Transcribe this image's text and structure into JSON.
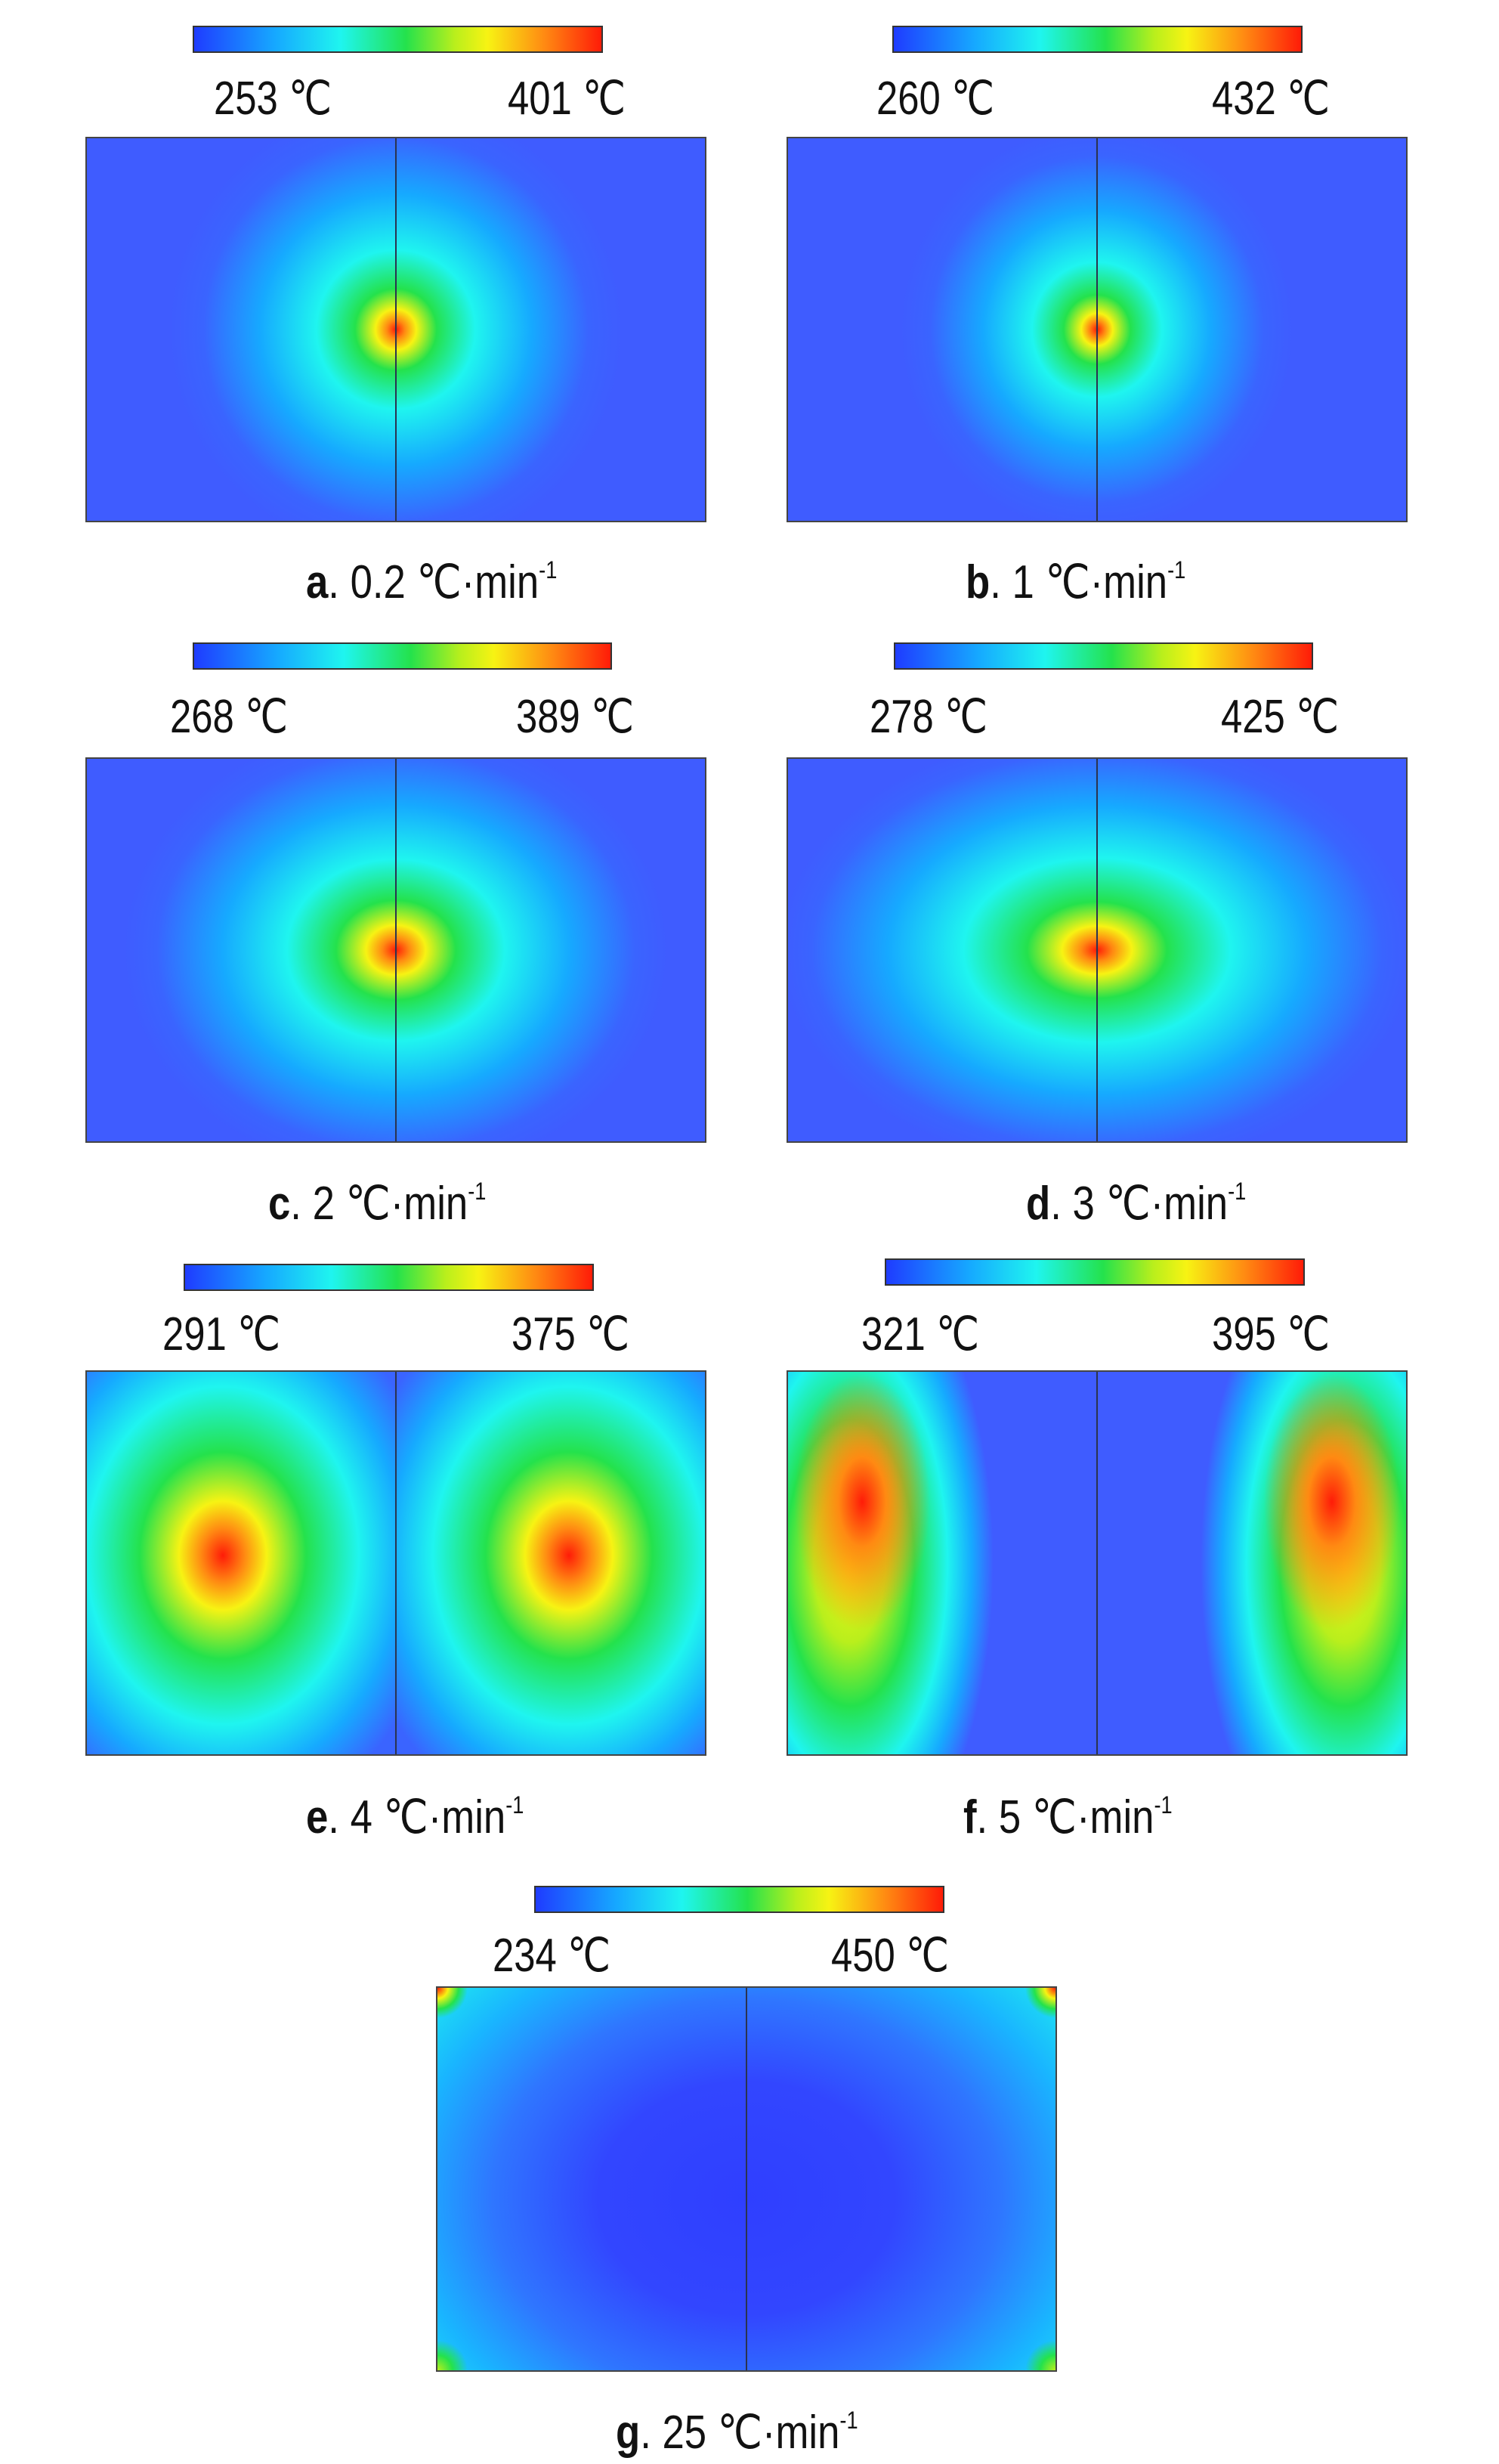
{
  "panels": [
    {
      "id": "a",
      "rate": "0.2",
      "min": "253 ℃",
      "max": "401 ℃",
      "unit": "℃·min",
      "exp": "-1",
      "sep": ". "
    },
    {
      "id": "b",
      "rate": "1",
      "min": "260 ℃",
      "max": "432 ℃",
      "unit": "℃·min",
      "exp": "-1",
      "sep": ". "
    },
    {
      "id": "c",
      "rate": "2",
      "min": "268 ℃",
      "max": "389 ℃",
      "unit": "℃·min",
      "exp": "-1",
      "sep": ". "
    },
    {
      "id": "d",
      "rate": "3",
      "min": "278 ℃",
      "max": "425 ℃",
      "unit": "℃·min",
      "exp": "-1",
      "sep": ". "
    },
    {
      "id": "e",
      "rate": "4",
      "min": "291 ℃",
      "max": "375 ℃",
      "unit": "℃·min",
      "exp": "-1",
      "sep": ". "
    },
    {
      "id": "f",
      "rate": "5",
      "min": "321 ℃",
      "max": "395 ℃",
      "unit": "℃·min",
      "exp": "-1",
      "sep": ". "
    },
    {
      "id": "g",
      "rate": "25",
      "min": "234 ℃",
      "max": "450 ℃",
      "unit": "℃·min",
      "exp": "-1",
      "sep": ". "
    }
  ],
  "colormap": [
    "#1f3cff",
    "#16a9ff",
    "#1ff5ef",
    "#24e24c",
    "#f7f313",
    "#ff8a12",
    "#ff1c08"
  ]
}
